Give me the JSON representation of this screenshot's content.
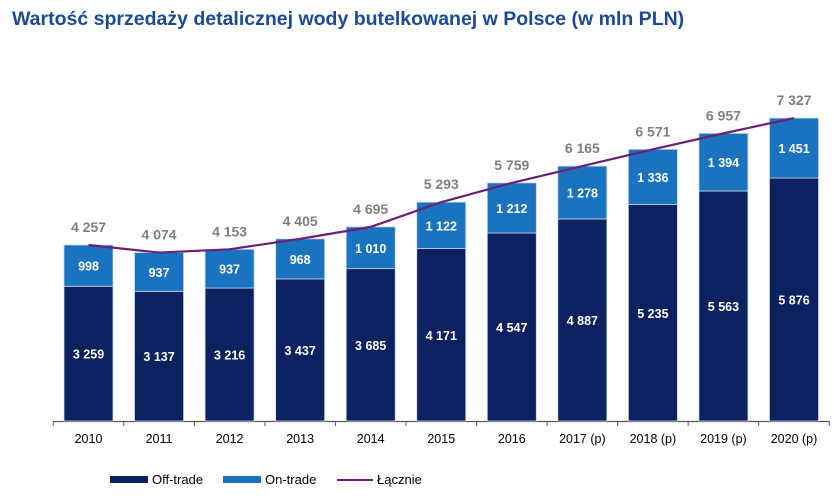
{
  "title": "Wartość sprzedaży detalicznej wody butelkowanej w Polsce (w mln PLN)",
  "chart_data": {
    "type": "bar",
    "stacked": true,
    "title": "Wartość sprzedaży detalicznej wody butelkowanej w Polsce (w mln PLN)",
    "categories": [
      "2010",
      "2011",
      "2012",
      "2013",
      "2014",
      "2015",
      "2016",
      "2017 (p)",
      "2018 (p)",
      "2019 (p)",
      "2020 (p)"
    ],
    "series": [
      {
        "name": "Off-trade",
        "type": "bar",
        "color": "#0b2160",
        "values": [
          3259,
          3137,
          3216,
          3437,
          3685,
          4171,
          4547,
          4887,
          5235,
          5563,
          5876
        ]
      },
      {
        "name": "On-trade",
        "type": "bar",
        "color": "#1a73bf",
        "values": [
          998,
          937,
          937,
          968,
          1010,
          1122,
          1212,
          1278,
          1336,
          1394,
          1451
        ]
      },
      {
        "name": "Łącznie",
        "type": "line",
        "color": "#6b2074",
        "values": [
          4257,
          4074,
          4153,
          4405,
          4695,
          5293,
          5759,
          6165,
          6571,
          6957,
          7327
        ]
      }
    ],
    "value_labels": {
      "off": [
        "3 259",
        "3 137",
        "3 216",
        "3 437",
        "3 685",
        "4 171",
        "4 547",
        "4 887",
        "5 235",
        "5 563",
        "5 876"
      ],
      "on": [
        "998",
        "937",
        "937",
        "968",
        "1 010",
        "1 122",
        "1 212",
        "1 278",
        "1 336",
        "1 394",
        "1 451"
      ],
      "total": [
        "4 257",
        "4 074",
        "4 153",
        "4 405",
        "4 695",
        "5 293",
        "5 759",
        "6 165",
        "6 571",
        "6 957",
        "7 327"
      ]
    },
    "ylim": [
      0,
      7400
    ],
    "grid": false,
    "legend_position": "bottom-left"
  }
}
